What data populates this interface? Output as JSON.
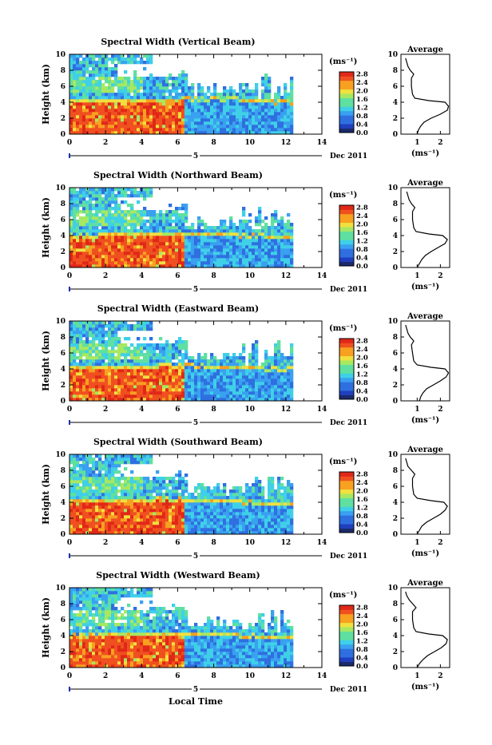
{
  "chart_data": [
    {
      "type": "heatmap",
      "title": "Spectral Width (Vertical Beam)",
      "ylabel": "Height (km)",
      "xlabel": "",
      "x_ticks": [
        "0",
        "2",
        "4",
        "6",
        "8",
        "10",
        "12",
        "14"
      ],
      "y_ticks": [
        "0",
        "2",
        "4",
        "6",
        "8",
        "10"
      ],
      "xlim": [
        0,
        14
      ],
      "ylim": [
        0,
        10
      ],
      "date_marker": "5",
      "date_label": "Dec 2011",
      "colorbar": {
        "unit": "(ms⁻¹)",
        "ticks": [
          "0.0",
          "0.4",
          "0.8",
          "1.2",
          "1.6",
          "2.0",
          "2.4",
          "2.8"
        ],
        "range": [
          0,
          2.8
        ]
      },
      "data_extent_hours": [
        0,
        12.3
      ],
      "boundary_layer_top_km": [
        4.2,
        4.2,
        4.1,
        4.3,
        4.4,
        4.4,
        4.2,
        4.0
      ],
      "average_profile": {
        "title": "Average",
        "xlabel": "(ms⁻¹)",
        "x_ticks": [
          "1",
          "2"
        ],
        "y_ticks": [
          "0",
          "2",
          "4",
          "6",
          "8",
          "10"
        ],
        "xlim": [
          0.3,
          2.4
        ],
        "ylim": [
          0,
          10
        ],
        "height_km": [
          0.0,
          0.5,
          1.0,
          1.5,
          2.0,
          2.5,
          3.0,
          3.5,
          4.0,
          4.2,
          4.5,
          5.0,
          6.0,
          7.0,
          7.5,
          8.0,
          8.5,
          9.0,
          9.5
        ],
        "width_ms": [
          1.0,
          1.05,
          1.15,
          1.3,
          1.6,
          2.0,
          2.3,
          2.35,
          2.2,
          1.5,
          0.9,
          0.8,
          0.75,
          0.75,
          0.85,
          0.7,
          0.6,
          0.55,
          0.5
        ]
      }
    },
    {
      "type": "heatmap",
      "title": "Spectral Width (Northward Beam)",
      "ylabel": "Height (km)",
      "xlabel": "",
      "x_ticks": [
        "0",
        "2",
        "4",
        "6",
        "8",
        "10",
        "12",
        "14"
      ],
      "y_ticks": [
        "0",
        "2",
        "4",
        "6",
        "8",
        "10"
      ],
      "xlim": [
        0,
        14
      ],
      "ylim": [
        0,
        10
      ],
      "date_marker": "5",
      "date_label": "Dec 2011",
      "colorbar": {
        "unit": "(ms⁻¹)",
        "ticks": [
          "0.0",
          "0.4",
          "0.8",
          "1.2",
          "1.6",
          "2.0",
          "2.4",
          "2.8"
        ],
        "range": [
          0,
          2.8
        ]
      },
      "data_extent_hours": [
        0,
        12.3
      ],
      "boundary_layer_top_km": [
        4.0,
        4.1,
        4.2,
        4.3,
        4.3,
        4.1,
        4.0,
        3.9
      ],
      "average_profile": {
        "title": "Average",
        "xlabel": "(ms⁻¹)",
        "x_ticks": [
          "1",
          "2"
        ],
        "y_ticks": [
          "0",
          "2",
          "4",
          "6",
          "8",
          "10"
        ],
        "xlim": [
          0.3,
          2.4
        ],
        "ylim": [
          0,
          10
        ],
        "height_km": [
          0.0,
          0.5,
          1.0,
          1.5,
          2.0,
          2.5,
          3.0,
          3.5,
          4.0,
          4.2,
          4.5,
          5.0,
          6.0,
          7.0,
          7.5,
          8.0,
          8.5,
          9.0,
          9.5
        ],
        "width_ms": [
          1.0,
          1.1,
          1.2,
          1.35,
          1.6,
          1.9,
          2.2,
          2.3,
          2.1,
          1.5,
          0.95,
          0.85,
          0.8,
          0.8,
          0.9,
          0.75,
          0.65,
          0.6,
          0.55
        ]
      }
    },
    {
      "type": "heatmap",
      "title": "Spectral Width (Eastward Beam)",
      "ylabel": "Height (km)",
      "xlabel": "",
      "x_ticks": [
        "0",
        "2",
        "4",
        "6",
        "8",
        "10",
        "12",
        "14"
      ],
      "y_ticks": [
        "0",
        "2",
        "4",
        "6",
        "8",
        "10"
      ],
      "xlim": [
        0,
        14
      ],
      "ylim": [
        0,
        10
      ],
      "date_marker": "5",
      "date_label": "Dec 2011",
      "colorbar": {
        "unit": "(ms⁻¹)",
        "ticks": [
          "0.0",
          "0.4",
          "0.8",
          "1.2",
          "1.6",
          "2.0",
          "2.4",
          "2.8"
        ],
        "range": [
          0,
          2.8
        ]
      },
      "data_extent_hours": [
        0,
        12.3
      ],
      "boundary_layer_top_km": [
        4.2,
        4.2,
        4.3,
        4.4,
        4.4,
        4.3,
        4.1,
        4.0
      ],
      "average_profile": {
        "title": "Average",
        "xlabel": "(ms⁻¹)",
        "x_ticks": [
          "1",
          "2"
        ],
        "y_ticks": [
          "0",
          "2",
          "4",
          "6",
          "8",
          "10"
        ],
        "xlim": [
          0.3,
          2.4
        ],
        "ylim": [
          0,
          10
        ],
        "height_km": [
          0.0,
          0.5,
          1.0,
          1.5,
          2.0,
          2.5,
          3.0,
          3.5,
          4.0,
          4.2,
          4.5,
          5.0,
          6.0,
          7.0,
          7.5,
          8.0,
          8.5,
          9.0,
          9.5
        ],
        "width_ms": [
          1.1,
          1.15,
          1.25,
          1.4,
          1.7,
          2.0,
          2.25,
          2.35,
          2.2,
          1.6,
          1.0,
          0.85,
          0.8,
          0.75,
          0.85,
          0.7,
          0.6,
          0.55,
          0.5
        ]
      }
    },
    {
      "type": "heatmap",
      "title": "Spectral Width (Southward Beam)",
      "ylabel": "Height (km)",
      "xlabel": "",
      "x_ticks": [
        "0",
        "2",
        "4",
        "6",
        "8",
        "10",
        "12",
        "14"
      ],
      "y_ticks": [
        "0",
        "2",
        "4",
        "6",
        "8",
        "10"
      ],
      "xlim": [
        0,
        14
      ],
      "ylim": [
        0,
        10
      ],
      "date_marker": "5",
      "date_label": "Dec 2011",
      "colorbar": {
        "unit": "(ms⁻¹)",
        "ticks": [
          "0.0",
          "0.4",
          "0.8",
          "1.2",
          "1.6",
          "2.0",
          "2.4",
          "2.8"
        ],
        "range": [
          0,
          2.8
        ]
      },
      "data_extent_hours": [
        0,
        12.3
      ],
      "boundary_layer_top_km": [
        4.1,
        4.2,
        4.3,
        4.4,
        4.3,
        4.2,
        4.0,
        3.9
      ],
      "average_profile": {
        "title": "Average",
        "xlabel": "(ms⁻¹)",
        "x_ticks": [
          "1",
          "2"
        ],
        "y_ticks": [
          "0",
          "2",
          "4",
          "6",
          "8",
          "10"
        ],
        "xlim": [
          0.3,
          2.4
        ],
        "ylim": [
          0,
          10
        ],
        "height_km": [
          0.0,
          0.5,
          1.0,
          1.5,
          2.0,
          2.5,
          3.0,
          3.5,
          4.0,
          4.2,
          4.5,
          5.0,
          6.0,
          7.0,
          7.5,
          8.0,
          8.5,
          9.0,
          9.5
        ],
        "width_ms": [
          1.0,
          1.1,
          1.2,
          1.4,
          1.7,
          2.0,
          2.2,
          2.3,
          2.15,
          1.6,
          1.0,
          0.85,
          0.8,
          0.8,
          0.9,
          0.75,
          0.6,
          0.55,
          0.5
        ]
      }
    },
    {
      "type": "heatmap",
      "title": "Spectral Width (Westward Beam)",
      "ylabel": "Height (km)",
      "xlabel": "Local Time",
      "x_ticks": [
        "0",
        "2",
        "4",
        "6",
        "8",
        "10",
        "12",
        "14"
      ],
      "y_ticks": [
        "0",
        "2",
        "4",
        "6",
        "8",
        "10"
      ],
      "xlim": [
        0,
        14
      ],
      "ylim": [
        0,
        10
      ],
      "date_marker": "5",
      "date_label": "Dec 2011",
      "colorbar": {
        "unit": "(ms⁻¹)",
        "ticks": [
          "0.0",
          "0.4",
          "0.8",
          "1.2",
          "1.6",
          "2.0",
          "2.4",
          "2.8"
        ],
        "range": [
          0,
          2.8
        ]
      },
      "data_extent_hours": [
        0,
        12.3
      ],
      "boundary_layer_top_km": [
        4.0,
        4.1,
        4.2,
        4.3,
        4.3,
        4.2,
        4.0,
        3.9
      ],
      "average_profile": {
        "title": "Average",
        "xlabel": "(ms⁻¹)",
        "x_ticks": [
          "1",
          "2"
        ],
        "y_ticks": [
          "0",
          "2",
          "4",
          "6",
          "8",
          "10"
        ],
        "xlim": [
          0.3,
          2.4
        ],
        "ylim": [
          0,
          10
        ],
        "height_km": [
          0.0,
          0.5,
          1.0,
          1.5,
          2.0,
          2.5,
          3.0,
          3.5,
          4.0,
          4.2,
          4.5,
          5.0,
          6.0,
          7.0,
          7.5,
          8.0,
          8.5,
          9.0,
          9.5
        ],
        "width_ms": [
          1.0,
          1.1,
          1.25,
          1.45,
          1.75,
          2.05,
          2.25,
          2.3,
          2.1,
          1.5,
          0.95,
          0.85,
          0.8,
          0.8,
          0.95,
          0.8,
          0.65,
          0.55,
          0.5
        ]
      }
    }
  ],
  "colors": {
    "scale": [
      "#1a2a6c",
      "#1f3fbf",
      "#2f6fe0",
      "#3aa0f0",
      "#3fd0e8",
      "#5fe0a0",
      "#a8e860",
      "#f0e040",
      "#f8a020",
      "#f05020",
      "#e02818"
    ],
    "axis": "#000000",
    "profile_line": "#000000",
    "background": "#ffffff"
  }
}
